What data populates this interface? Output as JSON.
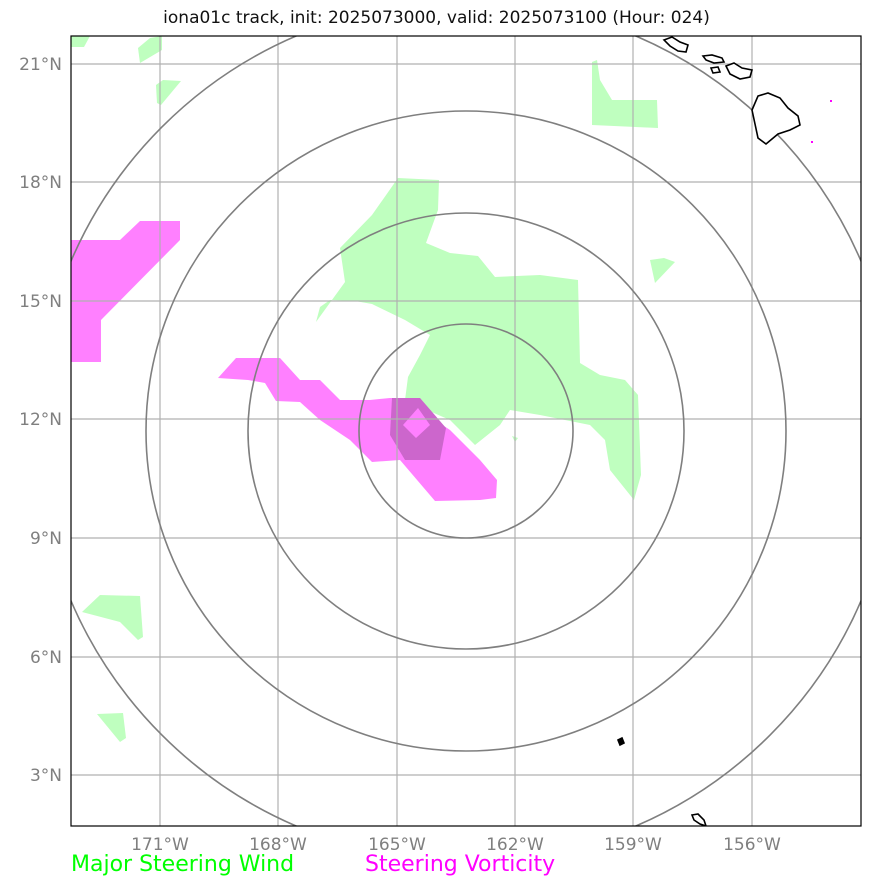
{
  "title": "iona01c track, init: 2025073000, valid: 2025073100 (Hour: 024)",
  "lon_ticks": [
    "171°W",
    "168°W",
    "165°W",
    "162°W",
    "159°W",
    "156°W"
  ],
  "lat_ticks": [
    "21°N",
    "18°N",
    "15°N",
    "12°N",
    "9°N",
    "6°N",
    "3°N"
  ],
  "legend": {
    "wind_label": "Major Steering Wind",
    "vorticity_label": "Steering Vorticity",
    "wind_color": "#00ff00",
    "vorticity_color": "#ff00ff"
  },
  "colors": {
    "wind_fill": "#bfffbf",
    "vorticity_fill": "#ff80ff",
    "overlap_fill": "#cc66cc",
    "range_ring": "#7f7f7f",
    "gridline": "#b0b0b0",
    "coastline": "#000000"
  }
}
